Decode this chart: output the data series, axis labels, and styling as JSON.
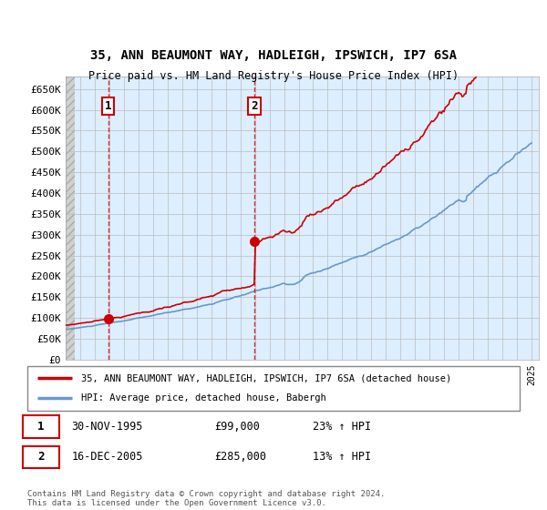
{
  "title_line1": "35, ANN BEAUMONT WAY, HADLEIGH, IPSWICH, IP7 6SA",
  "title_line2": "Price paid vs. HM Land Registry's House Price Index (HPI)",
  "ylabel_ticks": [
    "£0",
    "£50K",
    "£100K",
    "£150K",
    "£200K",
    "£250K",
    "£300K",
    "£350K",
    "£400K",
    "£450K",
    "£500K",
    "£550K",
    "£600K",
    "£650K"
  ],
  "ytick_values": [
    0,
    50000,
    100000,
    150000,
    200000,
    250000,
    300000,
    350000,
    400000,
    450000,
    500000,
    550000,
    600000,
    650000
  ],
  "ylim": [
    0,
    680000
  ],
  "xlim_start": 1993.0,
  "xlim_end": 2025.5,
  "purchase1_year": 1995.917,
  "purchase1_price": 99000,
  "purchase1_label": "1",
  "purchase2_year": 2005.958,
  "purchase2_price": 285000,
  "purchase2_label": "2",
  "purchase1_date": "30-NOV-1995",
  "purchase1_amount": "£99,000",
  "purchase1_hpi": "23% ↑ HPI",
  "purchase2_date": "16-DEC-2005",
  "purchase2_amount": "£285,000",
  "purchase2_hpi": "13% ↑ HPI",
  "legend_line1": "35, ANN BEAUMONT WAY, HADLEIGH, IPSWICH, IP7 6SA (detached house)",
  "legend_line2": "HPI: Average price, detached house, Babergh",
  "footer": "Contains HM Land Registry data © Crown copyright and database right 2024.\nThis data is licensed under the Open Government Licence v3.0.",
  "line_color_red": "#cc0000",
  "line_color_blue": "#6699cc",
  "bg_color_right": "#ddeeff",
  "grid_color": "#bbbbbb"
}
